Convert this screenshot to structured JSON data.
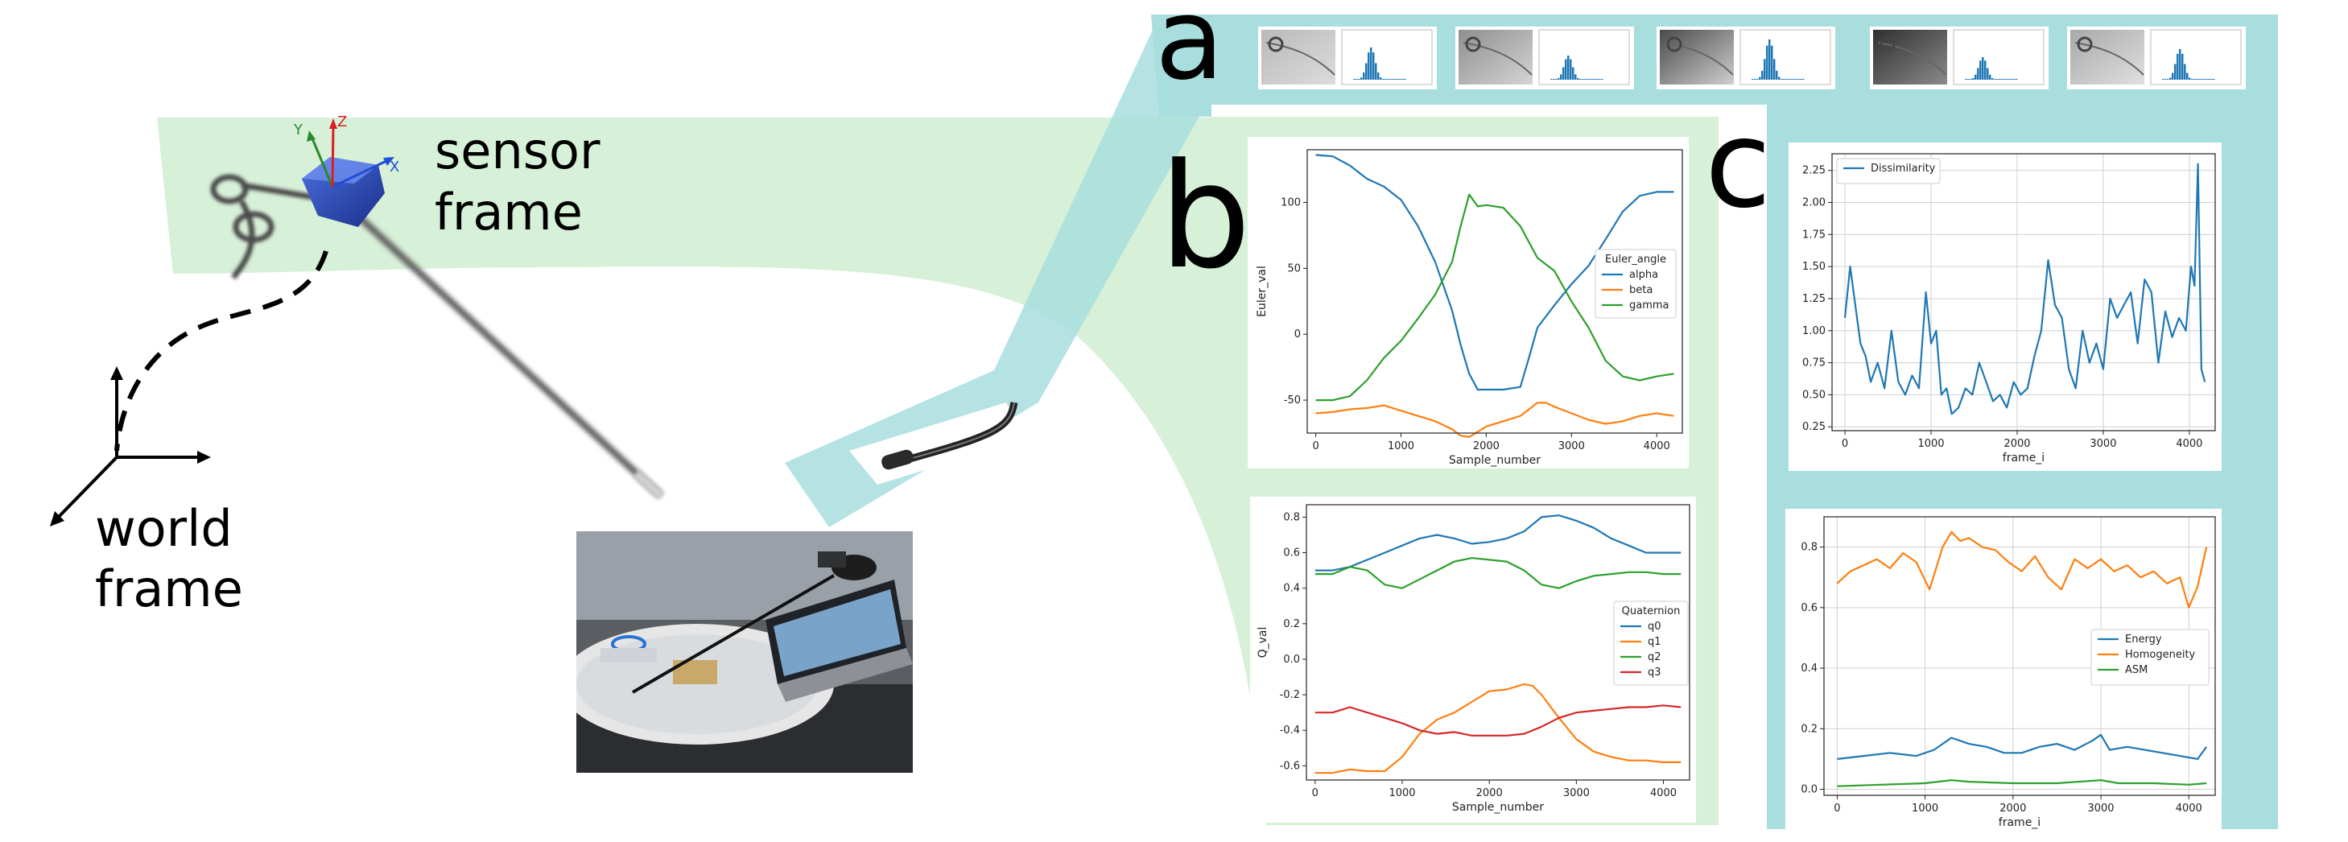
{
  "colors": {
    "green_band": "#d7f0d8",
    "teal_band": "#a8dede",
    "series_blue": "#1f77b4",
    "series_orange": "#ff7f0e",
    "series_green": "#2ca02c",
    "series_red": "#d62728",
    "axis_x": "#1f4fd8",
    "axis_y": "#2a8a2a",
    "axis_z": "#d82020"
  },
  "labels": {
    "sensor_frame_1": "sensor",
    "sensor_frame_2": "frame",
    "world_frame_1": "world",
    "world_frame_2": "frame",
    "panel_a": "a",
    "panel_b": "b",
    "panel_c": "c",
    "axis_x": "X",
    "axis_y": "Y",
    "axis_z": "Z"
  },
  "thumbnails": {
    "count": 5,
    "items": [
      {
        "image": "endoscope-frame-tube-ring",
        "histogram": "grayscale-histogram"
      },
      {
        "image": "endoscope-frame-bright-curve",
        "histogram": "grayscale-histogram"
      },
      {
        "image": "endoscope-frame-dark-edge",
        "histogram": "grayscale-histogram"
      },
      {
        "image": "endoscope-frame-dark-lights",
        "histogram": "grayscale-histogram"
      },
      {
        "image": "endoscope-frame-tube-ring-2",
        "histogram": "grayscale-histogram"
      }
    ]
  },
  "chart_data": [
    {
      "id": "euler",
      "type": "line",
      "xlabel": "Sample_number",
      "ylabel": "Euler_val",
      "xlim": [
        -100,
        4300
      ],
      "ylim": [
        -75,
        140
      ],
      "xticks": [
        0,
        1000,
        2000,
        3000,
        4000
      ],
      "yticks": [
        -50,
        0,
        50,
        100
      ],
      "grid": false,
      "legend_title": "Euler_angle",
      "legend_position": "center-right",
      "series": [
        {
          "name": "alpha",
          "color": "#1f77b4",
          "x": [
            0,
            200,
            400,
            600,
            800,
            1000,
            1200,
            1400,
            1600,
            1700,
            1800,
            1900,
            2000,
            2200,
            2400,
            2500,
            2600,
            2800,
            3000,
            3200,
            3400,
            3600,
            3800,
            4000,
            4200
          ],
          "y": [
            136,
            135,
            128,
            118,
            112,
            102,
            82,
            55,
            18,
            -8,
            -30,
            -42,
            -42,
            -42,
            -40,
            -18,
            5,
            22,
            38,
            52,
            72,
            93,
            105,
            108,
            108
          ]
        },
        {
          "name": "beta",
          "color": "#ff7f0e",
          "x": [
            0,
            200,
            400,
            600,
            800,
            1000,
            1200,
            1400,
            1600,
            1700,
            1800,
            1900,
            2000,
            2200,
            2400,
            2500,
            2600,
            2700,
            2800,
            3000,
            3200,
            3400,
            3600,
            3800,
            4000,
            4200
          ],
          "y": [
            -60,
            -59,
            -57,
            -56,
            -54,
            -58,
            -62,
            -66,
            -72,
            -77,
            -78,
            -74,
            -70,
            -66,
            -62,
            -57,
            -52,
            -52,
            -55,
            -60,
            -65,
            -68,
            -66,
            -62,
            -60,
            -62
          ]
        },
        {
          "name": "gamma",
          "color": "#2ca02c",
          "x": [
            0,
            200,
            400,
            600,
            800,
            1000,
            1200,
            1400,
            1600,
            1700,
            1800,
            1900,
            2000,
            2200,
            2400,
            2600,
            2800,
            3000,
            3200,
            3400,
            3600,
            3800,
            4000,
            4200
          ],
          "y": [
            -50,
            -50,
            -47,
            -35,
            -18,
            -5,
            12,
            30,
            55,
            82,
            106,
            97,
            98,
            96,
            82,
            58,
            48,
            25,
            5,
            -20,
            -32,
            -35,
            -32,
            -30
          ]
        }
      ]
    },
    {
      "id": "quaternion",
      "type": "line",
      "xlabel": "Sample_number",
      "ylabel": "Q_val",
      "xlim": [
        -100,
        4300
      ],
      "ylim": [
        -0.68,
        0.87
      ],
      "xticks": [
        0,
        1000,
        2000,
        3000,
        4000
      ],
      "yticks": [
        -0.6,
        -0.4,
        -0.2,
        0.0,
        0.2,
        0.4,
        0.6,
        0.8
      ],
      "grid": false,
      "legend_title": "Quaternion",
      "legend_position": "center-right",
      "series": [
        {
          "name": "q0",
          "color": "#1f77b4",
          "x": [
            0,
            200,
            400,
            600,
            800,
            1000,
            1200,
            1400,
            1600,
            1800,
            2000,
            2200,
            2400,
            2600,
            2800,
            3000,
            3200,
            3400,
            3600,
            3800,
            4000,
            4200
          ],
          "y": [
            0.5,
            0.5,
            0.52,
            0.56,
            0.6,
            0.64,
            0.68,
            0.7,
            0.68,
            0.65,
            0.66,
            0.68,
            0.72,
            0.8,
            0.81,
            0.78,
            0.74,
            0.68,
            0.64,
            0.6,
            0.6,
            0.6
          ]
        },
        {
          "name": "q1",
          "color": "#ff7f0e",
          "x": [
            0,
            200,
            400,
            600,
            800,
            1000,
            1200,
            1400,
            1600,
            1800,
            2000,
            2200,
            2400,
            2500,
            2600,
            2800,
            3000,
            3200,
            3400,
            3600,
            3800,
            4000,
            4200
          ],
          "y": [
            -0.64,
            -0.64,
            -0.62,
            -0.63,
            -0.63,
            -0.55,
            -0.42,
            -0.34,
            -0.3,
            -0.24,
            -0.18,
            -0.17,
            -0.14,
            -0.15,
            -0.2,
            -0.33,
            -0.45,
            -0.52,
            -0.55,
            -0.57,
            -0.57,
            -0.58,
            -0.58
          ]
        },
        {
          "name": "q2",
          "color": "#2ca02c",
          "x": [
            0,
            200,
            400,
            600,
            800,
            1000,
            1200,
            1400,
            1600,
            1800,
            2000,
            2200,
            2400,
            2600,
            2800,
            3000,
            3200,
            3400,
            3600,
            3800,
            4000,
            4200
          ],
          "y": [
            0.48,
            0.48,
            0.52,
            0.5,
            0.42,
            0.4,
            0.45,
            0.5,
            0.55,
            0.57,
            0.56,
            0.55,
            0.5,
            0.42,
            0.4,
            0.44,
            0.47,
            0.48,
            0.49,
            0.49,
            0.48,
            0.48
          ]
        },
        {
          "name": "q3",
          "color": "#d62728",
          "x": [
            0,
            200,
            400,
            600,
            800,
            1000,
            1200,
            1400,
            1600,
            1800,
            2000,
            2200,
            2400,
            2600,
            2800,
            3000,
            3200,
            3400,
            3600,
            3800,
            4000,
            4200
          ],
          "y": [
            -0.3,
            -0.3,
            -0.27,
            -0.3,
            -0.33,
            -0.36,
            -0.4,
            -0.42,
            -0.41,
            -0.43,
            -0.43,
            -0.43,
            -0.42,
            -0.38,
            -0.33,
            -0.3,
            -0.29,
            -0.28,
            -0.27,
            -0.27,
            -0.26,
            -0.27
          ]
        }
      ]
    },
    {
      "id": "dissimilarity",
      "type": "line",
      "xlabel": "frame_i",
      "ylabel": "",
      "xlim": [
        -150,
        4300
      ],
      "ylim": [
        0.22,
        2.38
      ],
      "xticks": [
        0,
        1000,
        2000,
        3000,
        4000
      ],
      "yticks": [
        0.25,
        0.5,
        0.75,
        1.0,
        1.25,
        1.5,
        1.75,
        2.0,
        2.25
      ],
      "grid": true,
      "legend_position": "top-left",
      "series": [
        {
          "name": "Dissimilarity",
          "color": "#1f77b4",
          "x": [
            0,
            60,
            120,
            180,
            240,
            300,
            380,
            460,
            540,
            620,
            700,
            780,
            860,
            940,
            1000,
            1060,
            1120,
            1180,
            1240,
            1320,
            1400,
            1480,
            1560,
            1640,
            1720,
            1800,
            1880,
            1960,
            2040,
            2120,
            2200,
            2280,
            2360,
            2440,
            2520,
            2600,
            2680,
            2760,
            2840,
            2920,
            3000,
            3080,
            3160,
            3240,
            3320,
            3400,
            3480,
            3560,
            3640,
            3720,
            3800,
            3880,
            3960,
            4020,
            4060,
            4100,
            4140,
            4180
          ],
          "y": [
            1.1,
            1.5,
            1.2,
            0.9,
            0.8,
            0.6,
            0.75,
            0.55,
            1.0,
            0.6,
            0.5,
            0.65,
            0.55,
            1.3,
            0.9,
            1.0,
            0.5,
            0.55,
            0.35,
            0.4,
            0.55,
            0.5,
            0.75,
            0.6,
            0.45,
            0.5,
            0.4,
            0.6,
            0.5,
            0.55,
            0.8,
            1.0,
            1.55,
            1.2,
            1.1,
            0.7,
            0.55,
            1.0,
            0.75,
            0.9,
            0.7,
            1.25,
            1.1,
            1.2,
            1.3,
            0.9,
            1.4,
            1.3,
            0.75,
            1.15,
            0.95,
            1.1,
            1.0,
            1.5,
            1.35,
            2.3,
            0.7,
            0.6
          ]
        }
      ]
    },
    {
      "id": "texture",
      "type": "line",
      "xlabel": "frame_i",
      "ylabel": "",
      "xlim": [
        -150,
        4300
      ],
      "ylim": [
        -0.02,
        0.9
      ],
      "xticks": [
        0,
        1000,
        2000,
        3000,
        4000
      ],
      "yticks": [
        0.0,
        0.2,
        0.4,
        0.6,
        0.8
      ],
      "grid": true,
      "legend_position": "center-right",
      "series": [
        {
          "name": "Energy",
          "color": "#1f77b4",
          "x": [
            0,
            300,
            600,
            900,
            1100,
            1300,
            1500,
            1700,
            1900,
            2100,
            2300,
            2500,
            2700,
            2900,
            3000,
            3100,
            3300,
            3500,
            3700,
            3900,
            4100,
            4200
          ],
          "y": [
            0.1,
            0.11,
            0.12,
            0.11,
            0.13,
            0.17,
            0.15,
            0.14,
            0.12,
            0.12,
            0.14,
            0.15,
            0.13,
            0.16,
            0.18,
            0.13,
            0.14,
            0.13,
            0.12,
            0.11,
            0.1,
            0.14
          ]
        },
        {
          "name": "Homogeneity",
          "color": "#ff7f0e",
          "x": [
            0,
            150,
            300,
            450,
            600,
            750,
            900,
            1050,
            1200,
            1300,
            1400,
            1500,
            1650,
            1800,
            1950,
            2100,
            2250,
            2400,
            2550,
            2700,
            2850,
            3000,
            3150,
            3300,
            3450,
            3600,
            3750,
            3900,
            4000,
            4100,
            4200
          ],
          "y": [
            0.68,
            0.72,
            0.74,
            0.76,
            0.73,
            0.78,
            0.75,
            0.66,
            0.8,
            0.85,
            0.82,
            0.83,
            0.8,
            0.79,
            0.75,
            0.72,
            0.77,
            0.7,
            0.66,
            0.76,
            0.73,
            0.76,
            0.72,
            0.74,
            0.7,
            0.72,
            0.68,
            0.7,
            0.6,
            0.67,
            0.8
          ]
        },
        {
          "name": "ASM",
          "color": "#2ca02c",
          "x": [
            0,
            500,
            1000,
            1300,
            1500,
            2000,
            2500,
            3000,
            3200,
            3600,
            4000,
            4200
          ],
          "y": [
            0.01,
            0.015,
            0.02,
            0.03,
            0.025,
            0.02,
            0.02,
            0.03,
            0.02,
            0.02,
            0.015,
            0.02
          ]
        }
      ]
    }
  ]
}
